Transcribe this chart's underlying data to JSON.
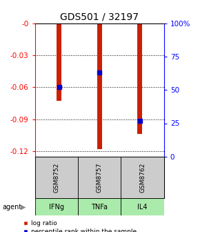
{
  "title": "GDS501 / 32197",
  "samples": [
    "GSM8752",
    "GSM8757",
    "GSM8762"
  ],
  "agents": [
    "IFNg",
    "TNFa",
    "IL4"
  ],
  "log_ratios": [
    -0.073,
    -0.118,
    -0.104
  ],
  "percentile_ranks": [
    52,
    63,
    27
  ],
  "ylim_left": [
    -0.125,
    0
  ],
  "ylim_right": [
    0,
    100
  ],
  "yticks_left": [
    0,
    -0.03,
    -0.06,
    -0.09,
    -0.12
  ],
  "ytick_labels_left": [
    "-0",
    "-0.03",
    "-0.06",
    "-0.09",
    "-0.12"
  ],
  "yticks_right": [
    0,
    25,
    50,
    75,
    100
  ],
  "ytick_labels_right": [
    "0",
    "25",
    "50",
    "75",
    "100%"
  ],
  "bar_color": "#cc2000",
  "square_color": "#0000cc",
  "bar_width": 0.12,
  "gsm_box_color": "#cccccc",
  "agent_box_color": "#aaeaaa",
  "legend_bar_label": "log ratio",
  "legend_sq_label": "percentile rank within the sample",
  "title_fontsize": 10,
  "tick_fontsize": 7.5
}
